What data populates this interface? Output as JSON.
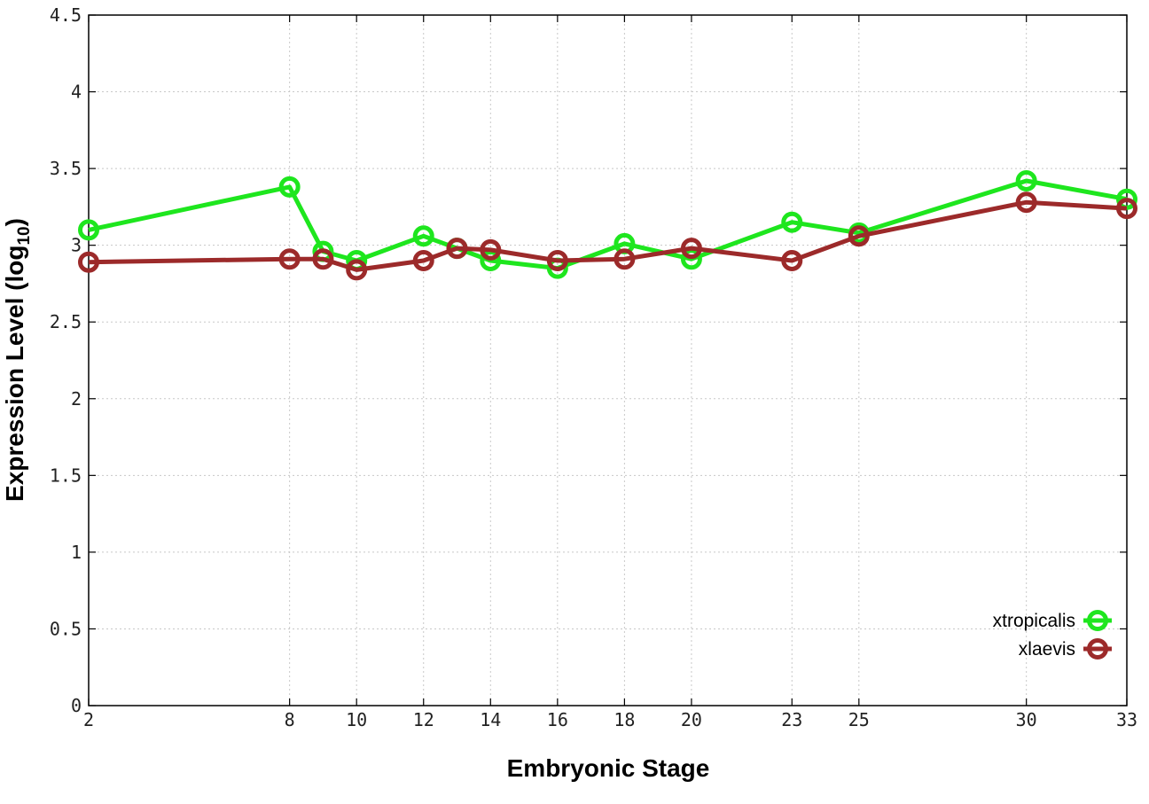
{
  "chart_data": {
    "type": "line",
    "xlabel": "Embryonic Stage",
    "ylabel_main": "Expression Level (log",
    "ylabel_sub": "10",
    "ylabel_close": ")",
    "x": [
      2,
      8,
      9,
      10,
      12,
      13,
      14,
      16,
      18,
      20,
      23,
      25,
      30,
      33
    ],
    "xticks": [
      2,
      8,
      10,
      12,
      14,
      16,
      18,
      20,
      23,
      25,
      30,
      33
    ],
    "xlim": [
      2,
      33
    ],
    "ylim": [
      0,
      4.5
    ],
    "yticks": [
      0,
      0.5,
      1,
      1.5,
      2,
      2.5,
      3,
      3.5,
      4,
      4.5
    ],
    "ytick_labels": [
      "0",
      "0.5",
      "1",
      "1.5",
      "2",
      "2.5",
      "3",
      "3.5",
      "4",
      "4.5"
    ],
    "grid": true,
    "legend_position": "bottom-right",
    "series": [
      {
        "name": "xtropicalis",
        "color": "#1ee61e",
        "values": [
          3.1,
          3.38,
          2.96,
          2.9,
          3.06,
          2.98,
          2.9,
          2.85,
          3.01,
          2.91,
          3.15,
          3.08,
          3.42,
          3.3
        ]
      },
      {
        "name": "xlaevis",
        "color": "#9c2a2a",
        "values": [
          2.89,
          2.91,
          2.91,
          2.84,
          2.9,
          2.98,
          2.97,
          2.9,
          2.91,
          2.98,
          2.9,
          3.06,
          3.28,
          3.24
        ]
      }
    ]
  }
}
